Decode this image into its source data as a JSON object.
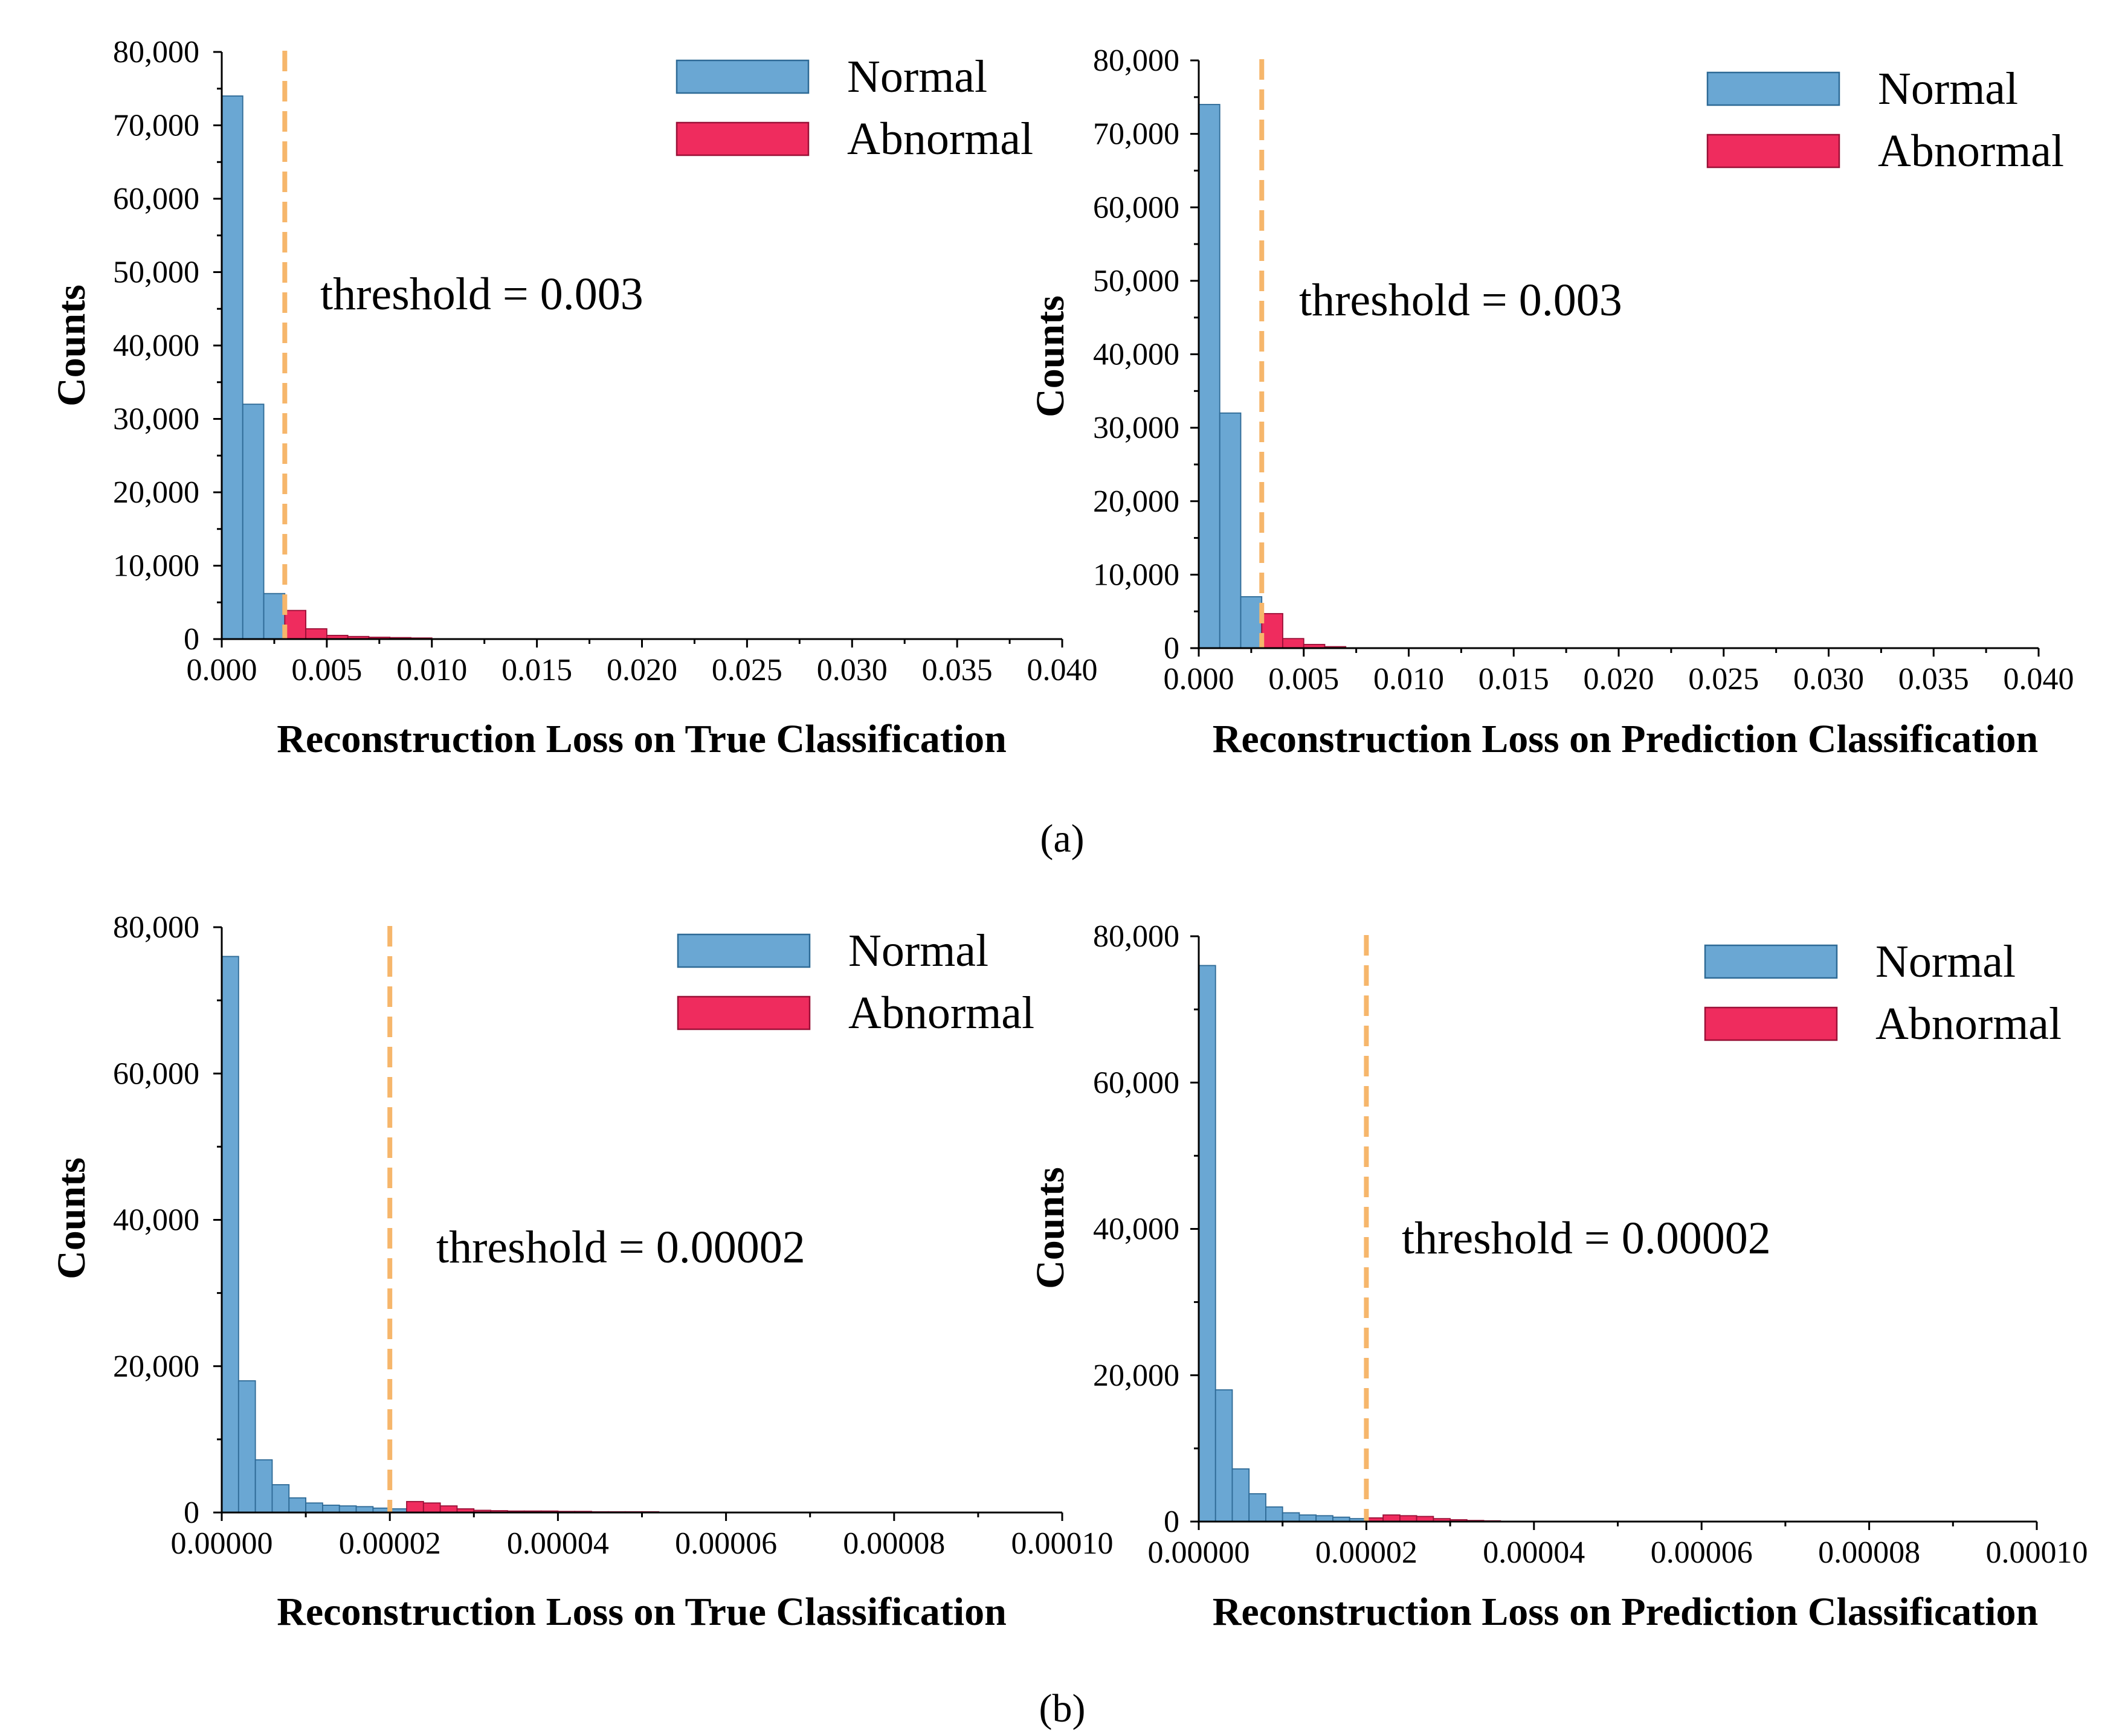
{
  "figure": {
    "panel_labels": [
      "(a)",
      "(b)"
    ]
  },
  "colors": {
    "normal": "#6AA7D3",
    "normal_edge": "#2E6A96",
    "abnormal": "#EF2C5E",
    "abnormal_edge": "#9A1037",
    "threshold": "#F6B66B",
    "axis": "#000000"
  },
  "chart_data": [
    {
      "id": "a-true",
      "type": "bar",
      "title": "",
      "xlabel": "Reconstruction Loss on True Classification",
      "ylabel": "Counts",
      "xlim": [
        0,
        0.04
      ],
      "ylim": [
        0,
        80000
      ],
      "xticks": [
        "0.000",
        "0.005",
        "0.010",
        "0.015",
        "0.020",
        "0.025",
        "0.030",
        "0.035",
        "0.040"
      ],
      "yticks": [
        "0",
        "10,000",
        "20,000",
        "30,000",
        "40,000",
        "50,000",
        "60,000",
        "70,000",
        "80,000"
      ],
      "bin_width": 0.001,
      "threshold": 0.003,
      "threshold_label": "threshold = 0.003",
      "legend": [
        "Normal",
        "Abnormal"
      ],
      "legend_position": "top-right",
      "series": [
        {
          "name": "Normal",
          "bin_starts": [
            0.0,
            0.001,
            0.002,
            0.003
          ],
          "values": [
            74000,
            32000,
            6200,
            800
          ]
        },
        {
          "name": "Abnormal",
          "bin_starts": [
            0.003,
            0.004,
            0.005,
            0.006,
            0.007,
            0.008,
            0.009
          ],
          "values": [
            3900,
            1400,
            500,
            350,
            250,
            200,
            150
          ]
        }
      ]
    },
    {
      "id": "a-pred",
      "type": "bar",
      "title": "",
      "xlabel": "Reconstruction Loss on Prediction Classification",
      "ylabel": "Counts",
      "xlim": [
        0,
        0.04
      ],
      "ylim": [
        0,
        80000
      ],
      "xticks": [
        "0.000",
        "0.005",
        "0.010",
        "0.015",
        "0.020",
        "0.025",
        "0.030",
        "0.035",
        "0.040"
      ],
      "yticks": [
        "0",
        "10,000",
        "20,000",
        "30,000",
        "40,000",
        "50,000",
        "60,000",
        "70,000",
        "80,000"
      ],
      "bin_width": 0.001,
      "threshold": 0.003,
      "threshold_label": "threshold = 0.003",
      "legend": [
        "Normal",
        "Abnormal"
      ],
      "legend_position": "top-right",
      "series": [
        {
          "name": "Normal",
          "bin_starts": [
            0.0,
            0.001,
            0.002
          ],
          "values": [
            74000,
            32000,
            7000
          ]
        },
        {
          "name": "Abnormal",
          "bin_starts": [
            0.003,
            0.004,
            0.005,
            0.006
          ],
          "values": [
            4700,
            1300,
            500,
            200
          ]
        }
      ]
    },
    {
      "id": "b-true",
      "type": "bar",
      "title": "",
      "xlabel": "Reconstruction Loss on True Classification",
      "ylabel": "Counts",
      "xlim": [
        0,
        0.0001
      ],
      "ylim": [
        0,
        80000
      ],
      "xticks": [
        "0.00000",
        "0.00002",
        "0.00004",
        "0.00006",
        "0.00008",
        "0.00010"
      ],
      "yticks": [
        "0",
        "20,000",
        "40,000",
        "60,000",
        "80,000"
      ],
      "bin_width": 2e-06,
      "threshold": 2e-05,
      "threshold_label": "threshold = 0.00002",
      "legend": [
        "Normal",
        "Abnormal"
      ],
      "legend_position": "top-right",
      "series": [
        {
          "name": "Normal",
          "bin_starts": [
            0.0,
            2e-06,
            4e-06,
            6e-06,
            8e-06,
            1e-05,
            1.2e-05,
            1.4e-05,
            1.6e-05,
            1.8e-05,
            2e-05
          ],
          "values": [
            76000,
            18000,
            7200,
            3800,
            2000,
            1300,
            1000,
            900,
            800,
            600,
            500
          ]
        },
        {
          "name": "Abnormal",
          "bin_starts": [
            2.2e-05,
            2.4e-05,
            2.6e-05,
            2.8e-05,
            3e-05,
            3.2e-05,
            3.4e-05,
            3.6e-05,
            3.8e-05,
            4e-05,
            4.2e-05,
            4.4e-05,
            4.6e-05,
            4.8e-05,
            5e-05
          ],
          "values": [
            1500,
            1300,
            900,
            500,
            300,
            250,
            200,
            200,
            200,
            150,
            150,
            100,
            100,
            100,
            100
          ]
        }
      ]
    },
    {
      "id": "b-pred",
      "type": "bar",
      "title": "",
      "xlabel": "Reconstruction Loss on Prediction Classification",
      "ylabel": "Counts",
      "xlim": [
        0,
        0.0001
      ],
      "ylim": [
        0,
        80000
      ],
      "xticks": [
        "0.00000",
        "0.00002",
        "0.00004",
        "0.00006",
        "0.00008",
        "0.00010"
      ],
      "yticks": [
        "0",
        "20,000",
        "40,000",
        "60,000",
        "80,000"
      ],
      "bin_width": 2e-06,
      "threshold": 2e-05,
      "threshold_label": "threshold = 0.00002",
      "legend": [
        "Normal",
        "Abnormal"
      ],
      "legend_position": "top-right",
      "series": [
        {
          "name": "Normal",
          "bin_starts": [
            0.0,
            2e-06,
            4e-06,
            6e-06,
            8e-06,
            1e-05,
            1.2e-05,
            1.4e-05,
            1.6e-05,
            1.8e-05
          ],
          "values": [
            76000,
            18000,
            7200,
            3800,
            2000,
            1200,
            900,
            800,
            600,
            400
          ]
        },
        {
          "name": "Abnormal",
          "bin_starts": [
            2e-05,
            2.2e-05,
            2.4e-05,
            2.6e-05,
            2.8e-05,
            3e-05,
            3.2e-05,
            3.4e-05
          ],
          "values": [
            500,
            900,
            800,
            700,
            400,
            250,
            150,
            100
          ]
        }
      ]
    }
  ]
}
